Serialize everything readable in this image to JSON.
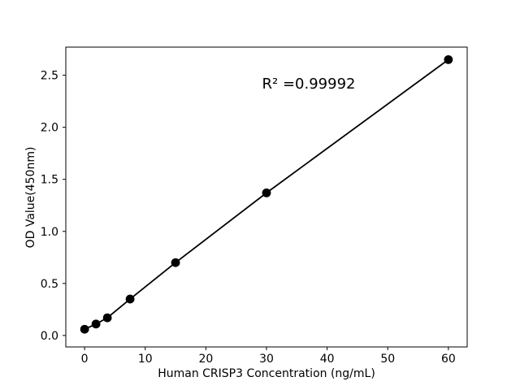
{
  "figure": {
    "background": "#ffffff"
  },
  "chart_data": {
    "type": "line",
    "marker": "circle",
    "title": "",
    "xlabel": "Human CRISP3 Concentration (ng/mL)",
    "ylabel": "OD Value(450nm)",
    "annotation": "R² =0.99992",
    "x": [
      0,
      1.875,
      3.75,
      7.5,
      15,
      30,
      60
    ],
    "y": [
      0.06,
      0.11,
      0.17,
      0.35,
      0.7,
      1.37,
      2.65
    ],
    "xticks": [
      0,
      10,
      20,
      30,
      40,
      50,
      60
    ],
    "yticks": [
      0.0,
      0.5,
      1.0,
      1.5,
      2.0,
      2.5
    ],
    "xlim": [
      -3.1,
      63.1
    ],
    "ylim": [
      -0.11,
      2.77
    ],
    "grid": false,
    "legend": null,
    "line_color": "#000000",
    "marker_color": "#000000",
    "axis_color": "#000000",
    "text_color": "#000000"
  }
}
